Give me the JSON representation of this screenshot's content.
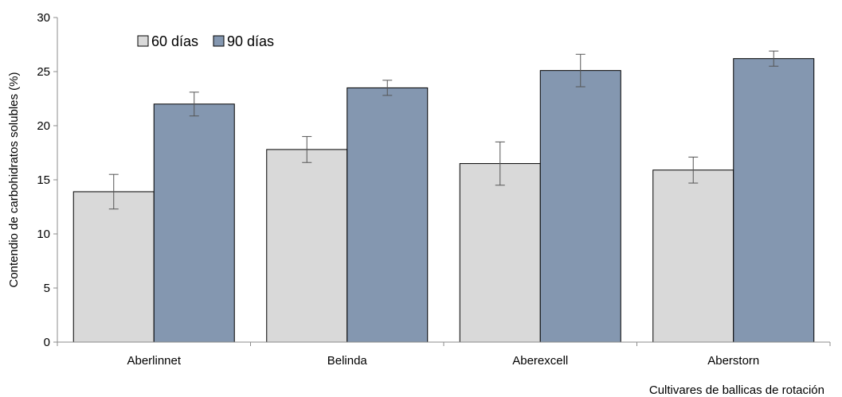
{
  "chart_data": {
    "type": "bar",
    "categories": [
      "Aberlinnet",
      "Belinda",
      "Aberexcell",
      "Aberstorn"
    ],
    "series": [
      {
        "name": "60 días",
        "values": [
          13.9,
          17.8,
          16.5,
          15.9
        ],
        "error": [
          1.6,
          1.2,
          2.0,
          1.2
        ],
        "color": "#d9d9d9"
      },
      {
        "name": "90 días",
        "values": [
          22.0,
          23.5,
          25.1,
          26.2
        ],
        "error": [
          1.1,
          0.7,
          1.5,
          0.7
        ],
        "color": "#8497b0"
      }
    ],
    "xlabel": "Cultivares de ballicas de rotación",
    "ylabel": "Contendio de carbohidratos solubles (%)",
    "ylim": [
      0,
      30
    ],
    "yticks": [
      "0",
      "5",
      "10",
      "15",
      "20",
      "25",
      "30"
    ],
    "legend_position": "top-left",
    "grid": false
  }
}
